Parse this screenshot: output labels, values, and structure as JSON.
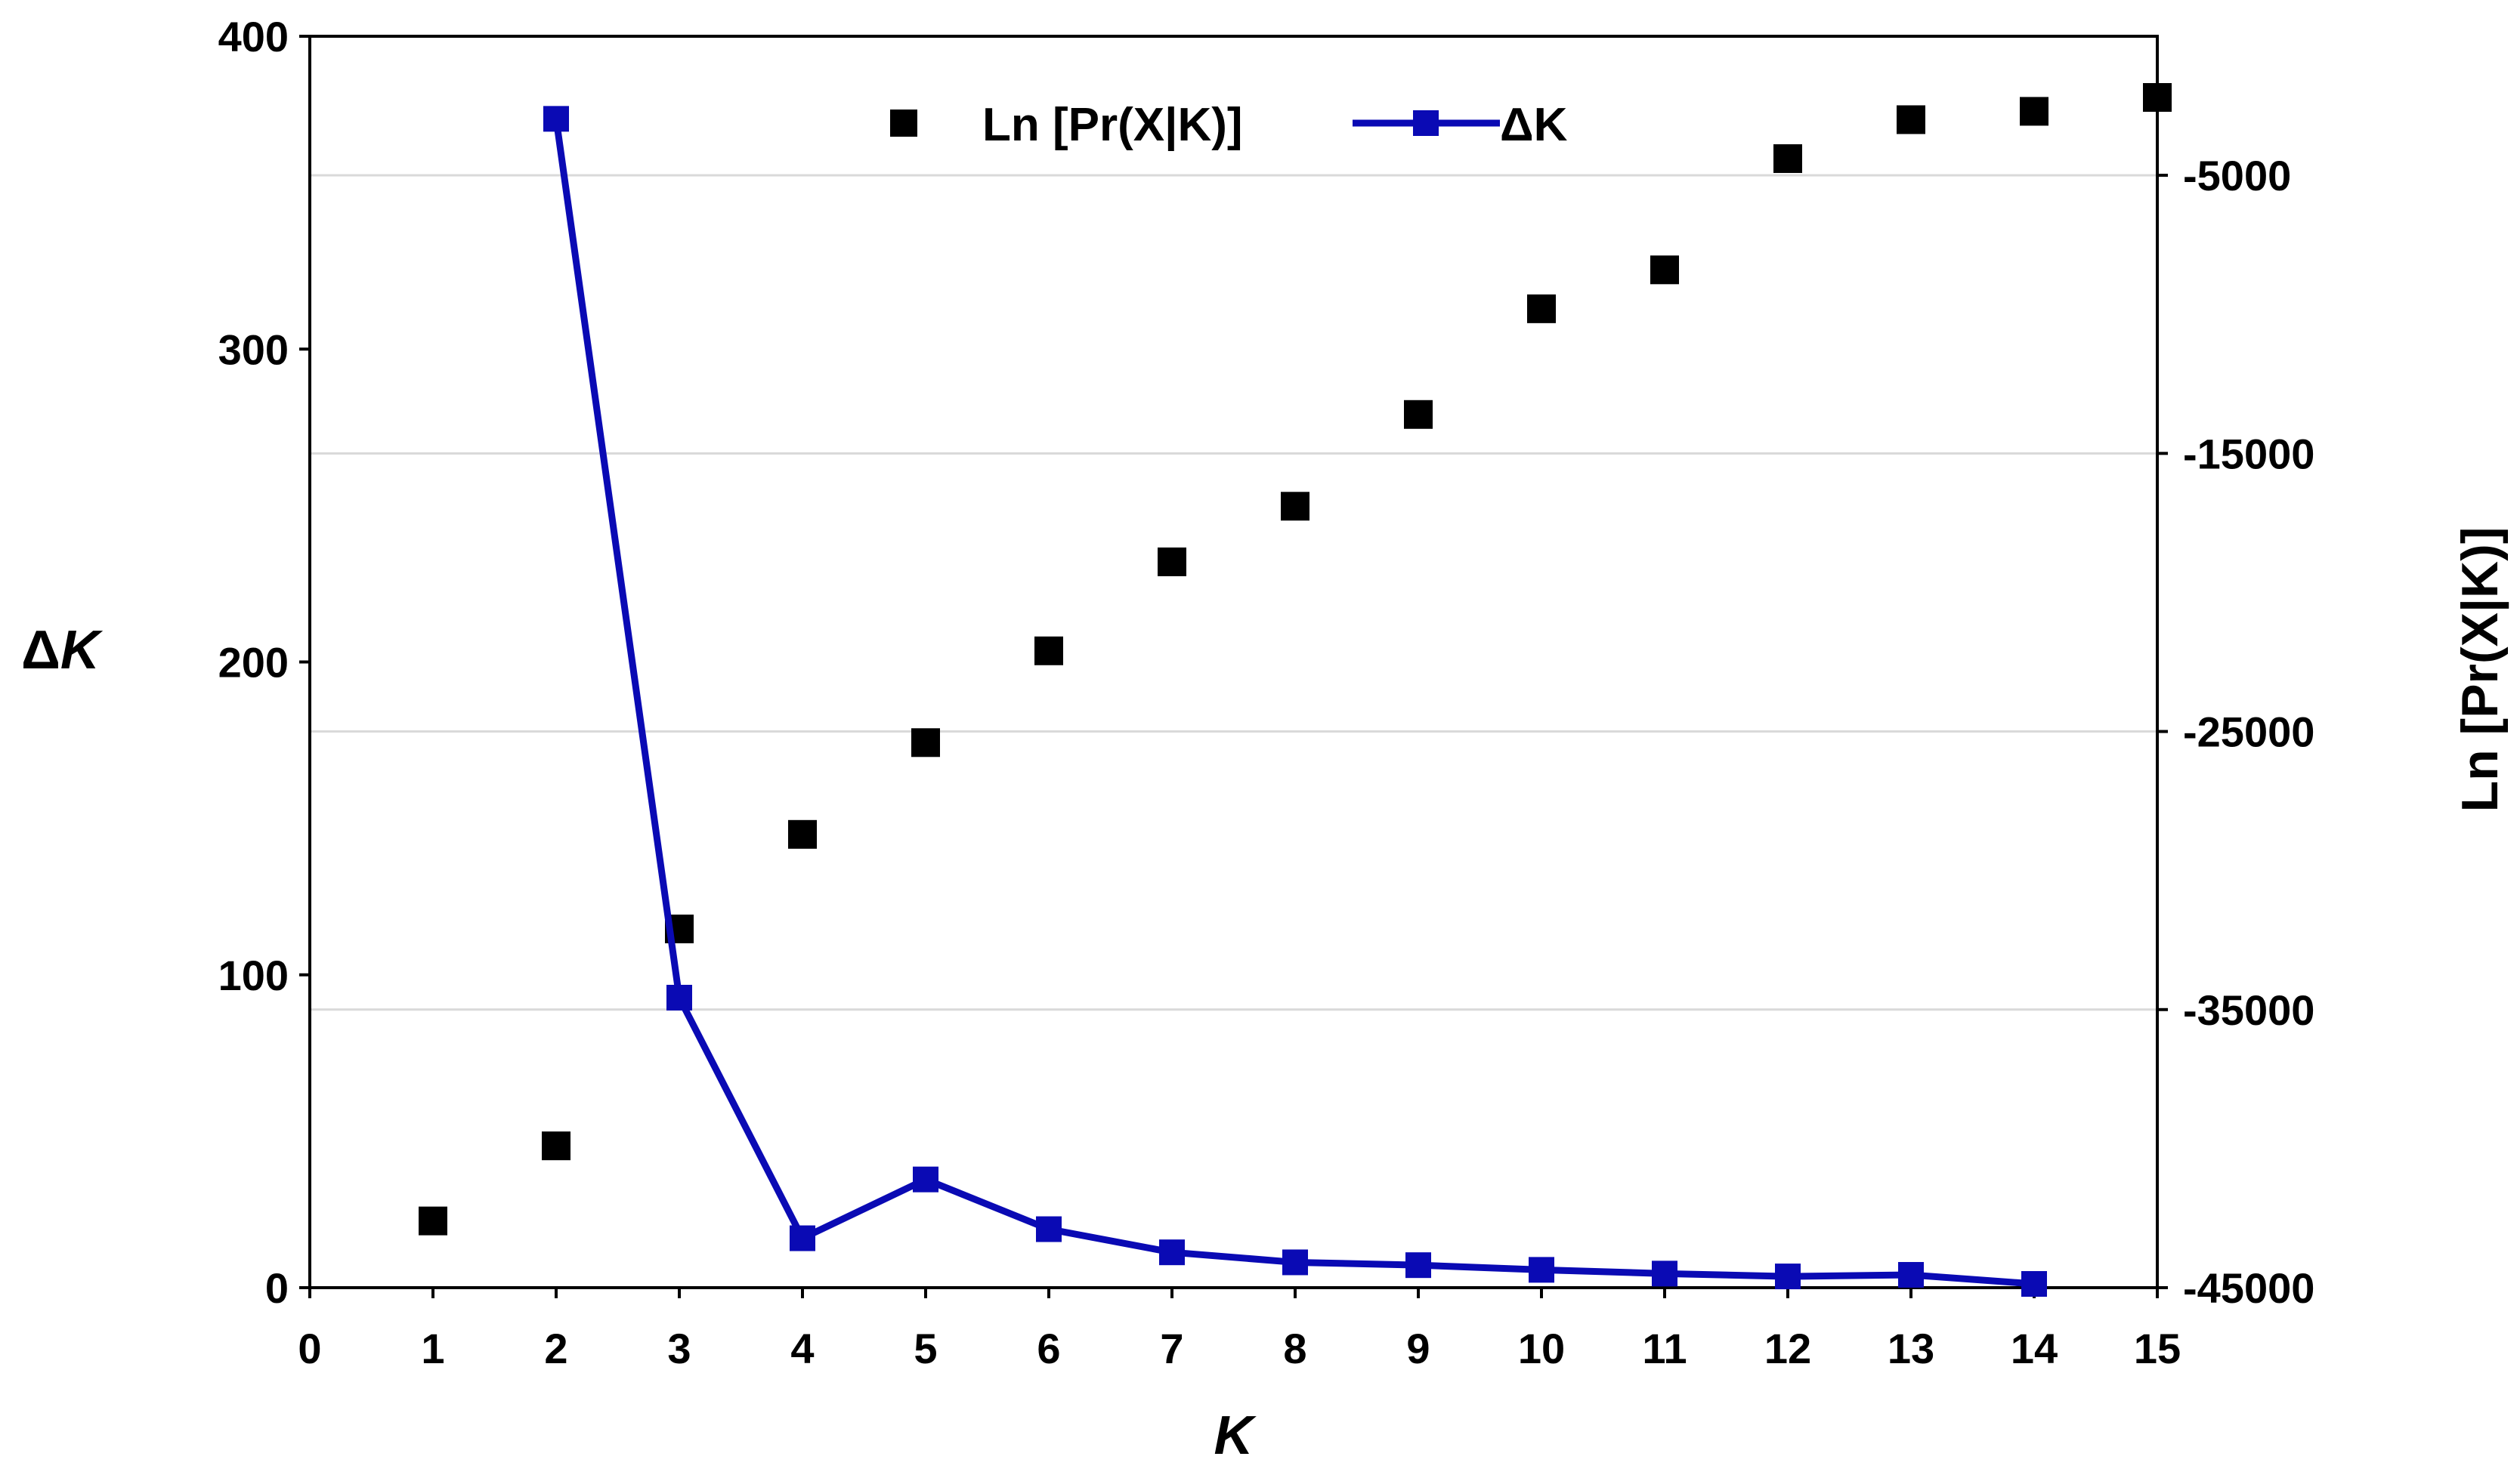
{
  "chart_data": {
    "type": "line",
    "x": [
      0,
      1,
      2,
      3,
      4,
      5,
      6,
      7,
      8,
      9,
      10,
      11,
      12,
      13,
      14,
      15
    ],
    "xlabel": "K",
    "xlim": [
      0,
      15
    ],
    "xticks": [
      "0",
      "1",
      "2",
      "3",
      "4",
      "5",
      "6",
      "7",
      "8",
      "9",
      "10",
      "11",
      "12",
      "13",
      "14",
      "15"
    ],
    "ylabel_left": "ΔK",
    "ylabel_left_prefix": "Δ",
    "ylabel_left_var": "K",
    "ylim_left": [
      0,
      400
    ],
    "yticks_left": [
      "0",
      "100",
      "200",
      "300",
      "400"
    ],
    "ylabel_right": "Ln [Pr(X|K)]",
    "ylim_right": [
      -45000,
      0
    ],
    "yticks_right": [
      "-45000",
      "-35000",
      "-25000",
      "-15000",
      "-5000"
    ],
    "gridlines_right": [
      -35000,
      -25000,
      -15000,
      -5000
    ],
    "grid": true,
    "legend_position": "top-center",
    "series": [
      {
        "name": "Ln [Pr(X|K)]",
        "axis": "right",
        "style": "markers",
        "color": "#000000",
        "x": [
          1,
          2,
          3,
          4,
          5,
          6,
          7,
          8,
          9,
          10,
          11,
          12,
          13,
          14,
          15
        ],
        "values": [
          -42600,
          -39900,
          -32100,
          -28700,
          -25400,
          -22100,
          -18900,
          -16900,
          -13600,
          -9800,
          -8400,
          -4400,
          -3000,
          -2700,
          -2200
        ]
      },
      {
        "name": "ΔK",
        "axis": "left",
        "style": "line-markers",
        "color": "#0A0AB4",
        "x": [
          2,
          3,
          4,
          5,
          6,
          7,
          8,
          9,
          10,
          11,
          12,
          13,
          14
        ],
        "values": [
          373.6,
          92.7,
          15.8,
          34.6,
          18.7,
          11.3,
          8.1,
          7.2,
          5.7,
          4.5,
          3.6,
          4.1,
          1.2
        ]
      }
    ]
  }
}
